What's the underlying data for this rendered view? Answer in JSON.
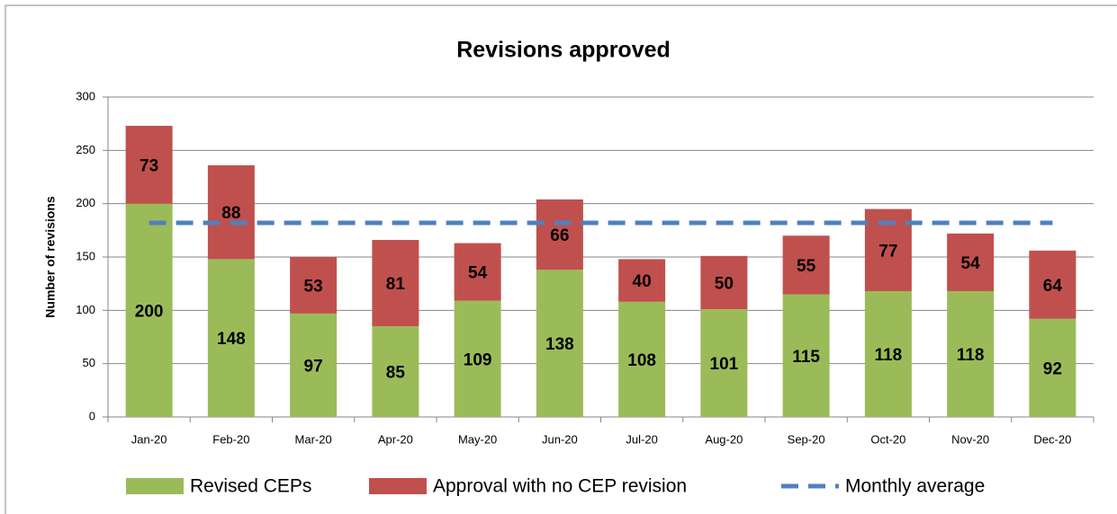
{
  "chart_data": {
    "type": "bar",
    "stacked": true,
    "title": "Revisions approved",
    "y_label": "Number of revisions",
    "categories": [
      "Jan-20",
      "Feb-20",
      "Mar-20",
      "Apr-20",
      "May-20",
      "Jun-20",
      "Jul-20",
      "Aug-20",
      "Sep-20",
      "Oct-20",
      "Nov-20",
      "Dec-20"
    ],
    "series": [
      {
        "name": "Revised CEPs",
        "color": "#9bbb59",
        "values": [
          200,
          148,
          97,
          85,
          109,
          138,
          108,
          101,
          115,
          118,
          118,
          92
        ]
      },
      {
        "name": "Approval with no CEP revision",
        "color": "#c0504d",
        "values": [
          73,
          88,
          53,
          81,
          54,
          66,
          40,
          50,
          55,
          77,
          54,
          64
        ]
      },
      {
        "name": "Monthly average",
        "type": "line",
        "color": "#4f81bd",
        "dashed": true,
        "values": [
          182,
          182,
          182,
          182,
          182,
          182,
          182,
          182,
          182,
          182,
          182,
          182
        ]
      }
    ],
    "ylim": [
      0,
      300
    ],
    "yticks": [
      0,
      50,
      100,
      150,
      200,
      250,
      300
    ],
    "grid": true,
    "legend": "bottom"
  }
}
